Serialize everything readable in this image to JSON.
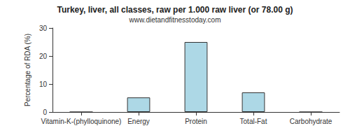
{
  "chart_data": {
    "type": "bar",
    "title": "Turkey, liver, all classes, raw per 1.000 raw liver (or 78.00 g)",
    "subtitle": "www.dietandfitnesstoday.com",
    "y_label": "Percentage of RDA (%)",
    "categories": [
      "Vitamin-K-(phylloquinone)",
      "Energy",
      "Protein",
      "Total-Fat",
      "Carbohydrate"
    ],
    "values": [
      0,
      5.2,
      25,
      7,
      0
    ],
    "color": "#add8e6",
    "ylim": [
      0,
      30
    ],
    "yticks": [
      0,
      10,
      20,
      30
    ],
    "grid": false
  }
}
